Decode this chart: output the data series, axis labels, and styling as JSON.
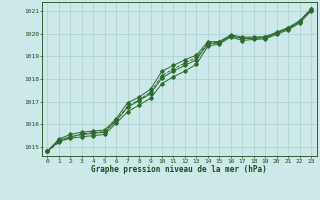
{
  "xlabel": "Graphe pression niveau de la mer (hPa)",
  "x": [
    0,
    1,
    2,
    3,
    4,
    5,
    6,
    7,
    8,
    9,
    10,
    11,
    12,
    13,
    14,
    15,
    16,
    17,
    18,
    19,
    20,
    21,
    22,
    23
  ],
  "y_main": [
    1014.8,
    1015.3,
    1015.45,
    1015.55,
    1015.6,
    1015.65,
    1016.15,
    1016.75,
    1017.05,
    1017.35,
    1018.05,
    1018.35,
    1018.6,
    1018.85,
    1019.55,
    1019.6,
    1019.9,
    1019.78,
    1019.8,
    1019.82,
    1020.02,
    1020.22,
    1020.52,
    1021.05
  ],
  "y_upper": [
    1014.8,
    1015.35,
    1015.55,
    1015.65,
    1015.7,
    1015.75,
    1016.25,
    1016.95,
    1017.2,
    1017.55,
    1018.35,
    1018.6,
    1018.85,
    1019.05,
    1019.65,
    1019.65,
    1019.95,
    1019.85,
    1019.85,
    1019.87,
    1020.07,
    1020.27,
    1020.57,
    1021.1
  ],
  "y_lower": [
    1014.8,
    1015.25,
    1015.38,
    1015.45,
    1015.5,
    1015.55,
    1016.05,
    1016.55,
    1016.85,
    1017.15,
    1017.8,
    1018.1,
    1018.35,
    1018.65,
    1019.45,
    1019.55,
    1019.85,
    1019.7,
    1019.75,
    1019.77,
    1019.97,
    1020.17,
    1020.47,
    1021.0
  ],
  "y_dotted": [
    1014.8,
    1015.2,
    1015.42,
    1015.58,
    1015.63,
    1015.68,
    1016.18,
    1016.78,
    1017.08,
    1017.42,
    1018.15,
    1018.45,
    1018.7,
    1018.95,
    1019.58,
    1019.62,
    1019.92,
    1019.8,
    1019.82,
    1019.84,
    1020.04,
    1020.24,
    1020.54,
    1021.07
  ],
  "ylim": [
    1014.6,
    1021.4
  ],
  "yticks": [
    1015,
    1016,
    1017,
    1018,
    1019,
    1020,
    1021
  ],
  "xticks": [
    0,
    1,
    2,
    3,
    4,
    5,
    6,
    7,
    8,
    9,
    10,
    11,
    12,
    13,
    14,
    15,
    16,
    17,
    18,
    19,
    20,
    21,
    22,
    23
  ],
  "line_color": "#2d6a2d",
  "bg_color": "#cce8e8",
  "grid_color": "#aacfcf",
  "label_color": "#1a4a1a",
  "marker": "D",
  "marker_size": 1.8,
  "linewidth": 0.7
}
